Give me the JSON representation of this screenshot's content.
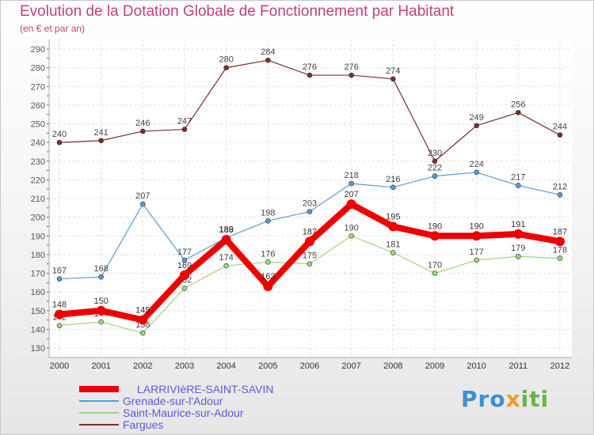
{
  "title": "Evolution de la Dotation Globale de Fonctionnement par Habitant",
  "subtitle": "(en € et par an)",
  "brand": {
    "part1": "Pro",
    "part2": "x",
    "part3": "iti"
  },
  "chart_data": {
    "type": "line",
    "x": [
      "2000",
      "2001",
      "2002",
      "2003",
      "2004",
      "2005",
      "2006",
      "2007",
      "2008",
      "2009",
      "2010",
      "2011",
      "2012"
    ],
    "ylim": [
      130,
      290
    ],
    "yticks": [
      130,
      140,
      150,
      160,
      170,
      180,
      190,
      200,
      210,
      220,
      230,
      240,
      250,
      260,
      270,
      280,
      290
    ],
    "grid": true,
    "series": [
      {
        "name": "Fargues",
        "color": "#7a2e2e",
        "width": 1.2,
        "labelColor": "#444444",
        "values": [
          240,
          241,
          246,
          247,
          280,
          284,
          276,
          276,
          274,
          230,
          249,
          256,
          244
        ]
      },
      {
        "name": "Grenade-sur-l'Adour",
        "color": "#5b9bd5",
        "width": 1.2,
        "labelColor": "#444444",
        "values": [
          167,
          168,
          207,
          177,
          189,
          198,
          203,
          218,
          216,
          222,
          224,
          217,
          212
        ]
      },
      {
        "name": "Saint-Maurice-sur-Adour",
        "color": "#9ed67c",
        "width": 1.2,
        "labelColor": "#444444",
        "values": [
          142,
          144,
          138,
          162,
          174,
          176,
          175,
          190,
          181,
          170,
          177,
          179,
          178
        ]
      },
      {
        "name": "LARRIVIèRE-SAINT-SAVIN",
        "color": "#ee0000",
        "width": 8,
        "labelColor": "#333333",
        "values": [
          148,
          150,
          145,
          169,
          188,
          163,
          187,
          207,
          195,
          190,
          190,
          191,
          187
        ]
      }
    ],
    "legend": [
      {
        "name": "LARRIVIèRE-SAINT-SAVIN",
        "color": "#ee0000"
      },
      {
        "name": "Grenade-sur-l'Adour",
        "color": "#5b9bd5"
      },
      {
        "name": "Saint-Maurice-sur-Adour",
        "color": "#9ed67c"
      },
      {
        "name": "Fargues",
        "color": "#7a2e2e"
      }
    ],
    "legend_text_color": "#5b5bd8",
    "legend_position": "bottom-left"
  }
}
